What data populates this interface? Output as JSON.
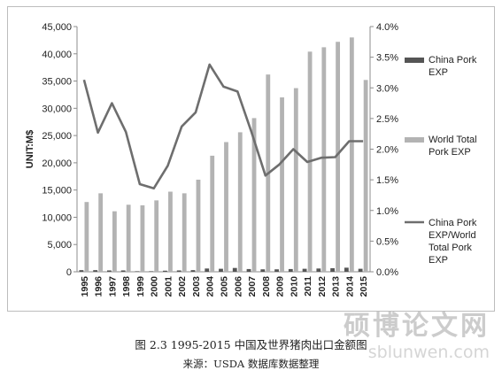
{
  "chart_data": {
    "type": "bar",
    "title": "",
    "ylabel": "UNIT:M$",
    "xlabel": "",
    "categories": [
      "1995",
      "1996",
      "1997",
      "1998",
      "1999",
      "2000",
      "2001",
      "2002",
      "2003",
      "2004",
      "2005",
      "2006",
      "2007",
      "2008",
      "2009",
      "2010",
      "2011",
      "2012",
      "2013",
      "2014",
      "2015"
    ],
    "series": [
      {
        "name": "China Pork EXP",
        "type": "bar",
        "axis": "left",
        "color": "#555555",
        "values": [
          300,
          300,
          250,
          250,
          100,
          100,
          200,
          250,
          300,
          600,
          550,
          700,
          500,
          450,
          450,
          500,
          550,
          600,
          650,
          750,
          550
        ]
      },
      {
        "name": "World Total Pork EXP",
        "type": "bar",
        "axis": "left",
        "color": "#b3b3b3",
        "values": [
          12800,
          14400,
          11100,
          12300,
          12200,
          13100,
          14700,
          14400,
          16900,
          21300,
          23800,
          25600,
          28200,
          36200,
          32000,
          33700,
          40400,
          41200,
          42200,
          43000,
          35200
        ]
      },
      {
        "name": "China Pork EXP/World Total Pork EXP",
        "type": "line",
        "axis": "right",
        "color": "#6e6e6e",
        "values": [
          3.13,
          2.27,
          2.75,
          2.28,
          1.43,
          1.36,
          1.73,
          2.37,
          2.6,
          3.38,
          3.02,
          2.94,
          2.28,
          1.57,
          1.75,
          2.0,
          1.79,
          1.86,
          1.87,
          2.13,
          2.13
        ]
      }
    ],
    "ylim": [
      0,
      45000
    ],
    "y2lim": [
      0,
      4.0
    ],
    "y_ticks": [
      "0",
      "5,000",
      "10,000",
      "15,000",
      "20,000",
      "25,000",
      "30,000",
      "35,000",
      "40,000",
      "45,000"
    ],
    "y2_ticks": [
      "0.0%",
      "0.5%",
      "1.0%",
      "1.5%",
      "2.0%",
      "2.5%",
      "3.0%",
      "3.5%",
      "4.0%"
    ],
    "gridlines": false,
    "legend_position": "right",
    "legend_labels": [
      [
        "China Pork",
        "EXP"
      ],
      [
        "World Total",
        "Pork EXP"
      ],
      [
        "China Pork",
        "EXP/World",
        "Total Pork",
        "EXP"
      ]
    ]
  },
  "caption": {
    "title": "图 2.3 1995-2015 中国及世界猪肉出口金额图",
    "source": "来源：USDA 数据库数据整理"
  },
  "watermark": {
    "text": "硕博论文网",
    "url": "sblunwen.com"
  }
}
